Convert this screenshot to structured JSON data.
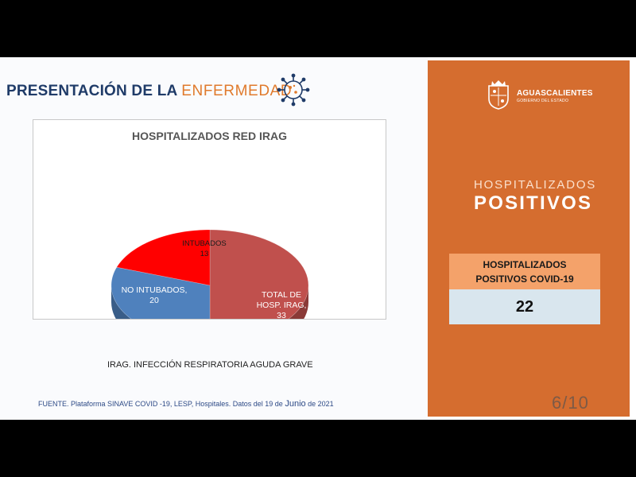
{
  "header": {
    "title_strong": "PRESENTACIÓN DE LA",
    "title_light": "ENFERMEDAD",
    "icon": "virus-icon"
  },
  "chart_data": {
    "type": "pie",
    "title": "HOSPITALIZADOS RED IRAG",
    "slices": [
      {
        "label": "TOTAL DE HOSP. IRAG,",
        "value": 33,
        "color": "#c0504d"
      },
      {
        "label": "NO INTUBADOS,",
        "value": 20,
        "color": "#4f81bd"
      },
      {
        "label": "INTUBADOS",
        "value": 13,
        "color": "#ff0000"
      }
    ]
  },
  "note": "IRAG. INFECCIÓN RESPIRATORIA AGUDA GRAVE",
  "source": {
    "prefix": "FUENTE. Plataforma SINAVE COVID -19, LESP, Hospitales. Datos del 19 de",
    "month": "Junio",
    "suffix": "de 2021"
  },
  "panel": {
    "brand": "AGUASCALIENTES",
    "brand_sub": "GOBIERNO DEL ESTADO",
    "heading_light": "HOSPITALIZADOS",
    "heading_bold": "POSITIVOS",
    "card_title_line1": "HOSPITALIZADOS",
    "card_title_line2": "POSITIVOS COVID-19",
    "card_value": "22",
    "page_indicator": "6/10",
    "colors": {
      "panel": "#d56d2f",
      "card_head": "#f4a26a",
      "card_value": "#d9e6ee"
    }
  }
}
